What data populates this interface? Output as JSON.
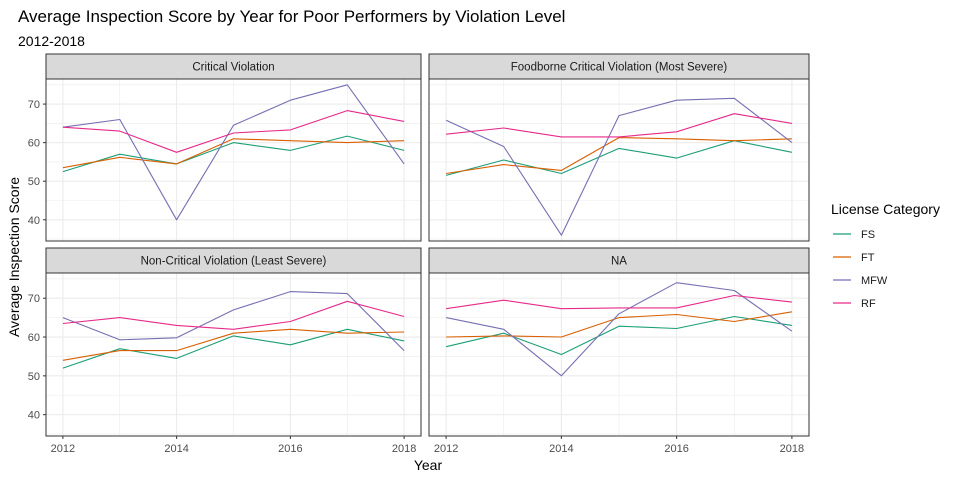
{
  "title": "Average Inspection Score by Year for Poor Performers by Violation Level",
  "subtitle": "2012-2018",
  "colors": {
    "FS": "#1b9e77",
    "FT": "#d95f02",
    "MFW": "#7570b3",
    "RF": "#e7298a",
    "strip_bg": "#d9d9d9",
    "grid": "#ebebeb"
  },
  "chart_data": {
    "type": "line",
    "title": "Average Inspection Score by Year for Poor Performers by Violation Level",
    "subtitle": "2012-2018",
    "xlabel": "Year",
    "ylabel": "Average Inspection Score",
    "x": [
      2012,
      2013,
      2014,
      2015,
      2016,
      2017,
      2018
    ],
    "x_ticks": [
      2012,
      2014,
      2016,
      2018
    ],
    "y_ticks": [
      40,
      50,
      60,
      70
    ],
    "ylim": [
      34.5,
      76.5
    ],
    "grid": true,
    "legend": {
      "title": "License Category",
      "placement": "right",
      "entries": [
        "FS",
        "FT",
        "MFW",
        "RF"
      ]
    },
    "panels": [
      {
        "label": "Critical Violation",
        "series": [
          {
            "name": "FS",
            "values": [
              52.5,
              57,
              54.5,
              60,
              58,
              61.7,
              58
            ]
          },
          {
            "name": "FT",
            "values": [
              53.5,
              56.2,
              54.5,
              61,
              60.5,
              60,
              60.5
            ]
          },
          {
            "name": "MFW",
            "values": [
              64,
              66,
              40,
              64.5,
              71,
              75,
              54.5
            ]
          },
          {
            "name": "RF",
            "values": [
              64,
              63,
              57.5,
              62.5,
              63.3,
              68.3,
              65.5
            ]
          }
        ]
      },
      {
        "label": "Foodborne Critical Violation (Most Severe)",
        "series": [
          {
            "name": "FS",
            "values": [
              51.5,
              55.5,
              52,
              58.5,
              56,
              60.5,
              57.5
            ]
          },
          {
            "name": "FT",
            "values": [
              52,
              54.3,
              52.8,
              61.3,
              61,
              60.5,
              61
            ]
          },
          {
            "name": "MFW",
            "values": [
              65.8,
              59,
              36,
              67,
              71,
              71.5,
              60
            ]
          },
          {
            "name": "RF",
            "values": [
              62.2,
              63.8,
              61.5,
              61.5,
              62.8,
              67.5,
              65
            ]
          }
        ]
      },
      {
        "label": "Non-Critical Violation (Least Severe)",
        "series": [
          {
            "name": "FS",
            "values": [
              52,
              57,
              54.5,
              60.3,
              58,
              62,
              59
            ]
          },
          {
            "name": "FT",
            "values": [
              54,
              56.5,
              56.5,
              61,
              62,
              61,
              61.3
            ]
          },
          {
            "name": "MFW",
            "values": [
              65,
              59.3,
              59.8,
              67,
              71.7,
              71.2,
              56.5
            ]
          },
          {
            "name": "RF",
            "values": [
              63.5,
              65,
              63,
              62,
              64,
              69.2,
              65.3
            ]
          }
        ]
      },
      {
        "label": "NA",
        "series": [
          {
            "name": "FS",
            "values": [
              57.5,
              61,
              55.5,
              62.8,
              62.2,
              65.3,
              63
            ]
          },
          {
            "name": "FT",
            "values": [
              60,
              60.3,
              60,
              65,
              65.8,
              64,
              66.5
            ]
          },
          {
            "name": "MFW",
            "values": [
              65,
              62,
              50,
              66,
              74,
              72,
              61.5
            ]
          },
          {
            "name": "RF",
            "values": [
              67.3,
              69.5,
              67.3,
              67.5,
              67.5,
              70.7,
              69
            ]
          }
        ]
      }
    ]
  }
}
